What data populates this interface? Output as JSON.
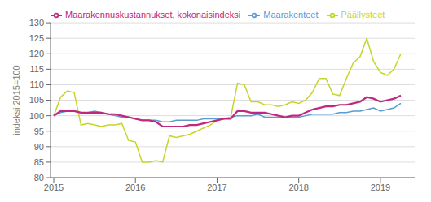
{
  "chart_data": {
    "type": "line",
    "title": "",
    "ylabel": "indeksi 2015=100",
    "x": [
      2015,
      2015.0833333333333,
      2015.1666666666667,
      2015.25,
      2015.3333333333333,
      2015.4166666666667,
      2015.5,
      2015.5833333333333,
      2015.6666666666667,
      2015.75,
      2015.8333333333333,
      2015.9166666666667,
      2016,
      2016.0833333333333,
      2016.1666666666667,
      2016.25,
      2016.3333333333333,
      2016.4166666666667,
      2016.5,
      2016.5833333333333,
      2016.6666666666667,
      2016.75,
      2016.8333333333333,
      2016.9166666666667,
      2017,
      2017.0833333333333,
      2017.1666666666667,
      2017.25,
      2017.3333333333333,
      2017.4166666666667,
      2017.5,
      2017.5833333333333,
      2017.6666666666667,
      2017.75,
      2017.8333333333333,
      2017.9166666666667,
      2018,
      2018.0833333333333,
      2018.1666666666667,
      2018.25,
      2018.3333333333333,
      2018.4166666666667,
      2018.5,
      2018.5833333333333,
      2018.6666666666667,
      2018.75,
      2018.8333333333333,
      2018.9166666666667,
      2019,
      2019.0833333333333,
      2019.1666666666667,
      2019.25
    ],
    "xlim": [
      2014.96,
      2019.42
    ],
    "xticks": [
      2015,
      2016,
      2017,
      2018,
      2019
    ],
    "ylim": [
      80,
      130
    ],
    "yticks": [
      80,
      85,
      90,
      95,
      100,
      105,
      110,
      115,
      120,
      125,
      130
    ],
    "grid": true,
    "legend": "upper left",
    "series": [
      {
        "name": "Maarakenteet",
        "color": "#5B9BD5",
        "values": [
          100.0,
          101.0,
          101.5,
          101.5,
          101.0,
          101.0,
          101.5,
          101.0,
          100.5,
          100.0,
          99.5,
          99.5,
          99.0,
          98.5,
          98.5,
          98.5,
          98.0,
          98.0,
          98.5,
          98.5,
          98.5,
          98.5,
          99.0,
          99.0,
          99.0,
          99.0,
          99.5,
          100.0,
          100.0,
          100.0,
          100.5,
          99.5,
          99.5,
          99.5,
          99.5,
          99.5,
          99.5,
          100.0,
          100.5,
          100.5,
          100.5,
          100.5,
          101.0,
          101.0,
          101.5,
          101.5,
          102.0,
          102.5,
          101.5,
          102.0,
          102.5,
          104.0
        ]
      },
      {
        "name": "Päällysteet",
        "color": "#C6D52A",
        "values": [
          100.0,
          106.0,
          108.0,
          107.5,
          97.0,
          97.5,
          97.0,
          96.5,
          97.0,
          97.0,
          97.5,
          92.0,
          91.5,
          85.0,
          85.0,
          85.5,
          85.0,
          93.5,
          93.0,
          93.5,
          94.0,
          95.0,
          96.0,
          97.0,
          98.5,
          99.0,
          99.5,
          110.5,
          110.0,
          104.5,
          104.5,
          103.5,
          103.5,
          103.0,
          103.5,
          104.5,
          104.0,
          105.0,
          107.5,
          112.0,
          112.0,
          107.0,
          106.5,
          112.0,
          117.0,
          119.0,
          125.0,
          117.5,
          114.0,
          113.0,
          115.0,
          120.0
        ]
      },
      {
        "name": "Maarakennuskustannukset, kokonaisindeksi",
        "color": "#BF287C",
        "values": [
          100.0,
          101.5,
          101.5,
          101.5,
          101.0,
          101.0,
          101.0,
          101.0,
          100.5,
          100.5,
          100.0,
          99.5,
          99.0,
          98.5,
          98.5,
          98.0,
          96.5,
          96.5,
          96.5,
          96.5,
          97.0,
          97.0,
          97.5,
          98.0,
          98.5,
          99.0,
          99.0,
          101.5,
          101.5,
          101.0,
          101.0,
          101.0,
          100.5,
          100.0,
          99.5,
          100.0,
          100.0,
          101.0,
          102.0,
          102.5,
          103.0,
          103.0,
          103.5,
          103.5,
          104.0,
          104.5,
          106.0,
          105.5,
          104.5,
          105.0,
          105.5,
          106.5
        ]
      }
    ]
  }
}
